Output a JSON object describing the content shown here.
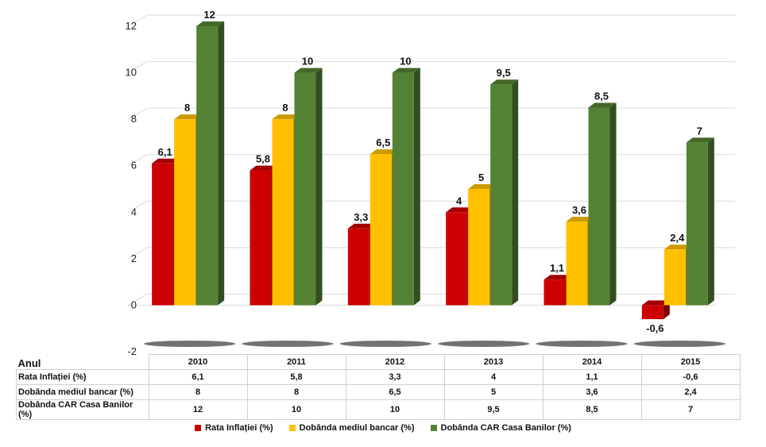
{
  "chart_data": {
    "type": "bar",
    "categories": [
      "2010",
      "2011",
      "2012",
      "2013",
      "2014",
      "2015"
    ],
    "series": [
      {
        "name": "Rata Inflației (%)",
        "color": "#cc0000",
        "values": [
          6.1,
          5.8,
          3.3,
          4,
          1.1,
          -0.6
        ],
        "labels": [
          "6,1",
          "5,8",
          "3,3",
          "4",
          "1,1",
          "-0,6"
        ]
      },
      {
        "name": "Dobânda mediul bancar (%)",
        "color": "#ffc000",
        "values": [
          8,
          8,
          6.5,
          5,
          3.6,
          2.4
        ],
        "labels": [
          "8",
          "8",
          "6,5",
          "5",
          "3,6",
          "2,4"
        ]
      },
      {
        "name": "Dobânda CAR Casa Banilor (%)",
        "color": "#548235",
        "values": [
          12,
          10,
          10,
          9.5,
          8.5,
          7
        ],
        "labels": [
          "12",
          "10",
          "10",
          "9,5",
          "8,5",
          "7"
        ]
      }
    ],
    "ylim": [
      -2,
      12
    ],
    "yticks": [
      "-2",
      "0",
      "2",
      "4",
      "6",
      "8",
      "10",
      "12"
    ],
    "grid": true,
    "legend_position": "bottom",
    "three_d": true
  },
  "table": {
    "corner_label": "Anul"
  }
}
